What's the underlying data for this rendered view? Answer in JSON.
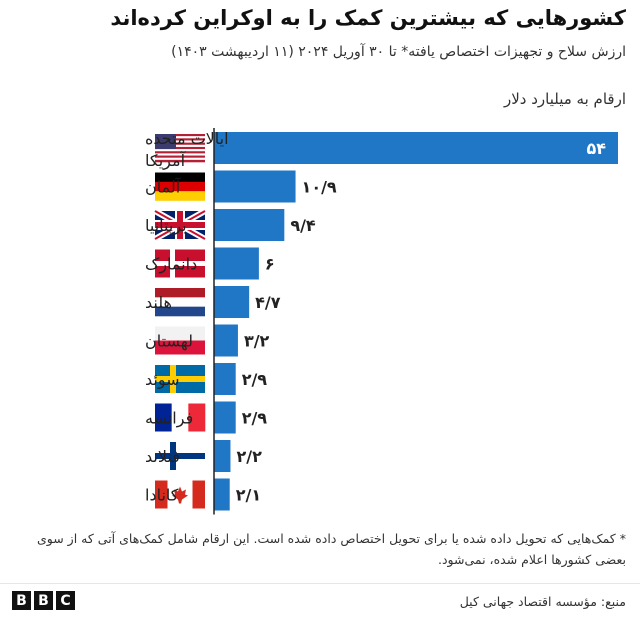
{
  "title": "کشورهایی که بیشترین کمک را به اوکراین کرده‌اند",
  "subtitle": "ارزش سلاح و تجهیزات اختصاص یافته* تا ۳۰ آوریل ۲۰۲۴ (۱۱ اردیبهشت ۱۴۰۳)",
  "unit_label": "ارقام به میلیارد دلار",
  "footnote": "* کمک‌هایی که تحویل داده شده یا برای تحویل اختصاص داده شده است. این ارقام شامل کمک‌های آتی که از سوی بعضی کشورها اعلام شده، نمی‌شود.",
  "source": "منبع: مؤسسه اقتصاد جهانی کیل",
  "logo": [
    "B",
    "B",
    "C"
  ],
  "colors": {
    "bar": "#1f77c6",
    "label_inside": "#ffffff",
    "label_outside": "#222222",
    "axis": "#222222"
  },
  "chart_data": {
    "type": "bar",
    "orientation": "horizontal",
    "categories": [
      "ایالات متحده آمریکا",
      "آلمان",
      "بریتانیا",
      "دانمارک",
      "هلند",
      "لهستان",
      "سوئد",
      "فرانسه",
      "فنلاند",
      "کانادا"
    ],
    "flags": [
      "us-flag",
      "germany-flag",
      "uk-flag",
      "denmark-flag",
      "netherlands-flag",
      "poland-flag",
      "sweden-flag",
      "france-flag",
      "finland-flag",
      "canada-flag"
    ],
    "values": [
      54,
      10.9,
      9.4,
      6,
      4.7,
      3.2,
      2.9,
      2.9,
      2.2,
      2.1
    ],
    "value_labels": [
      "۵۴",
      "۱۰/۹",
      "۹/۴",
      "۶",
      "۴/۷",
      "۳/۲",
      "۲/۹",
      "۲/۹",
      "۲/۲",
      "۲/۱"
    ],
    "xlim": [
      0,
      54
    ],
    "grid": false,
    "legend": "none"
  }
}
